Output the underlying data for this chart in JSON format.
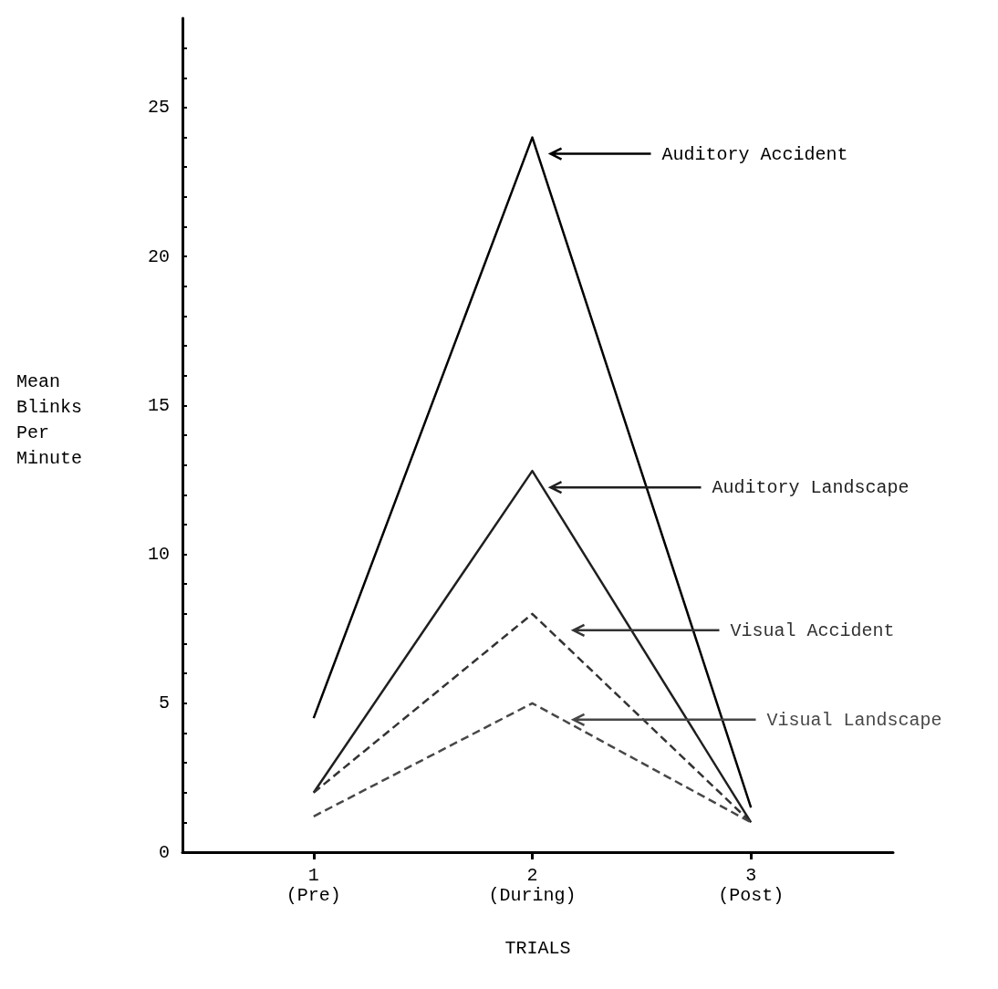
{
  "chart_data": {
    "type": "line",
    "xlabel": "TRIALS",
    "ylabel": "Mean Blinks Per Minute",
    "x": [
      1,
      2,
      3
    ],
    "xlim": [
      0.4,
      3.65
    ],
    "xticks": [
      {
        "value": 1,
        "label": "1\n(Pre)"
      },
      {
        "value": 2,
        "label": "2\n(During)"
      },
      {
        "value": 3,
        "label": "3\n(Post)"
      }
    ],
    "series": [
      {
        "name": "Auditory Accident",
        "color": "#000000",
        "line_style": "solid",
        "values": [
          4.5,
          24,
          1.5
        ]
      },
      {
        "name": "Auditory Landscape",
        "color": "#1f1f1f",
        "line_style": "solid",
        "values": [
          2,
          12.8,
          1
        ]
      },
      {
        "name": "Visual Accident",
        "color": "#333333",
        "line_style": "dashed",
        "values": [
          2,
          8,
          1
        ]
      },
      {
        "name": "Visual Landscape",
        "color": "#474747",
        "line_style": "dashed",
        "values": [
          1.2,
          5,
          1
        ]
      }
    ],
    "ylim": [
      0,
      28
    ],
    "yticks": [
      0,
      {
        "value": 1,
        "label": null
      },
      {
        "value": 2,
        "label": null
      },
      {
        "value": 3,
        "label": null
      },
      {
        "value": 4,
        "label": null
      },
      5,
      {
        "value": 6,
        "label": null
      },
      {
        "value": 7,
        "label": null
      },
      {
        "value": 8,
        "label": null
      },
      {
        "value": 9,
        "label": null
      },
      10,
      {
        "value": 11,
        "label": null
      },
      {
        "value": 12,
        "label": null
      },
      {
        "value": 13,
        "label": null
      },
      {
        "value": 14,
        "label": null
      },
      15,
      {
        "value": 16,
        "label": null
      },
      {
        "value": 17,
        "label": null
      },
      {
        "value": 18,
        "label": null
      },
      {
        "value": 19,
        "label": null
      },
      20,
      {
        "value": 21,
        "label": null
      },
      {
        "value": 22,
        "label": null
      },
      {
        "value": 23,
        "label": null
      },
      {
        "value": 24,
        "label": null
      },
      25,
      {
        "value": 26,
        "label": null
      },
      {
        "value": 27,
        "label": null
      }
    ],
    "grid": false,
    "legend": false,
    "marker": "none"
  }
}
